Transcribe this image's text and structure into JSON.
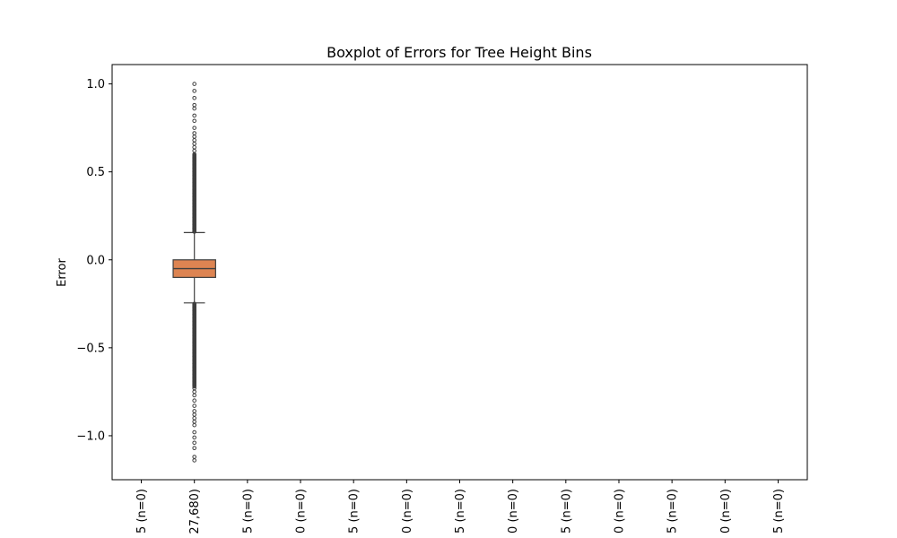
{
  "chart_data": {
    "type": "box",
    "title": "Boxplot of Errors for Tree Height Bins",
    "xlabel": "",
    "ylabel": "Error",
    "ylim": [
      -1.25,
      1.11
    ],
    "yticks": [
      1.0,
      0.5,
      0.0,
      -0.5,
      -1.0
    ],
    "ytick_labels": [
      "1.0",
      "0.5",
      "0.0",
      "−0.5",
      "−1.0"
    ],
    "grid": false,
    "box_color": "#dd8452",
    "line_color": "#3f3f3f",
    "categories": [
      {
        "label": "5 (n=0)",
        "box": null
      },
      {
        "label": "27,680)",
        "box": {
          "q1": -0.1,
          "median": -0.05,
          "q3": 0.0,
          "whisker_low": -0.245,
          "whisker_high": 0.155
        }
      },
      {
        "label": "5 (n=0)",
        "box": null
      },
      {
        "label": "0 (n=0)",
        "box": null
      },
      {
        "label": "5 (n=0)",
        "box": null
      },
      {
        "label": "0 (n=0)",
        "box": null
      },
      {
        "label": "5 (n=0)",
        "box": null
      },
      {
        "label": "0 (n=0)",
        "box": null
      },
      {
        "label": "5 (n=0)",
        "box": null
      },
      {
        "label": "0 (n=0)",
        "box": null
      },
      {
        "label": "5 (n=0)",
        "box": null
      },
      {
        "label": "0 (n=0)",
        "box": null
      },
      {
        "label": "5 (n=0)",
        "box": null
      }
    ],
    "outliers_high": [
      1.0,
      0.96,
      0.92,
      0.88,
      0.86,
      0.82,
      0.79,
      0.75,
      0.72,
      0.7,
      0.68,
      0.66,
      0.64,
      0.62,
      0.6,
      0.58,
      0.56,
      0.54,
      0.52,
      0.5,
      0.48,
      0.46,
      0.44,
      0.42,
      0.4,
      0.38,
      0.36,
      0.34,
      0.32,
      0.3,
      0.28,
      0.26,
      0.24,
      0.22,
      0.2,
      0.18,
      0.16
    ],
    "outliers_low": [
      -0.25,
      -0.27,
      -0.29,
      -0.31,
      -0.33,
      -0.35,
      -0.37,
      -0.39,
      -0.41,
      -0.43,
      -0.45,
      -0.47,
      -0.49,
      -0.51,
      -0.53,
      -0.55,
      -0.57,
      -0.59,
      -0.61,
      -0.63,
      -0.65,
      -0.67,
      -0.69,
      -0.71,
      -0.73,
      -0.75,
      -0.77,
      -0.8,
      -0.83,
      -0.86,
      -0.88,
      -0.9,
      -0.92,
      -0.94,
      -0.98,
      -1.01,
      -1.04,
      -1.07,
      -1.12,
      -1.14
    ]
  }
}
